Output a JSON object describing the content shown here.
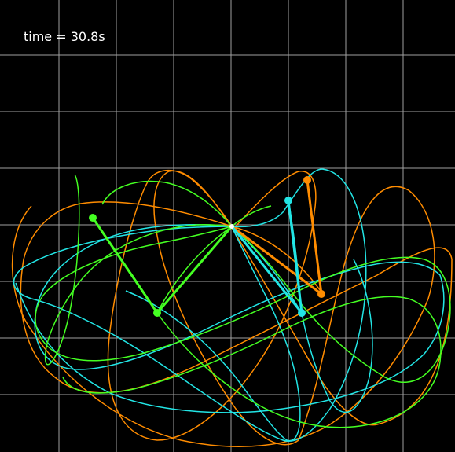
{
  "time_label": "time = 30.8s",
  "colors": {
    "background": "#000000",
    "grid": "#c8c8c8",
    "pendulum_1": "#ff8c00",
    "pendulum_2": "#22e5e5",
    "pendulum_3": "#44ff22"
  },
  "scene": {
    "grid": true,
    "pendulums": [
      {
        "name": "orange",
        "color_key": "pendulum_1"
      },
      {
        "name": "cyan",
        "color_key": "pendulum_2"
      },
      {
        "name": "green",
        "color_key": "pendulum_3"
      }
    ]
  }
}
